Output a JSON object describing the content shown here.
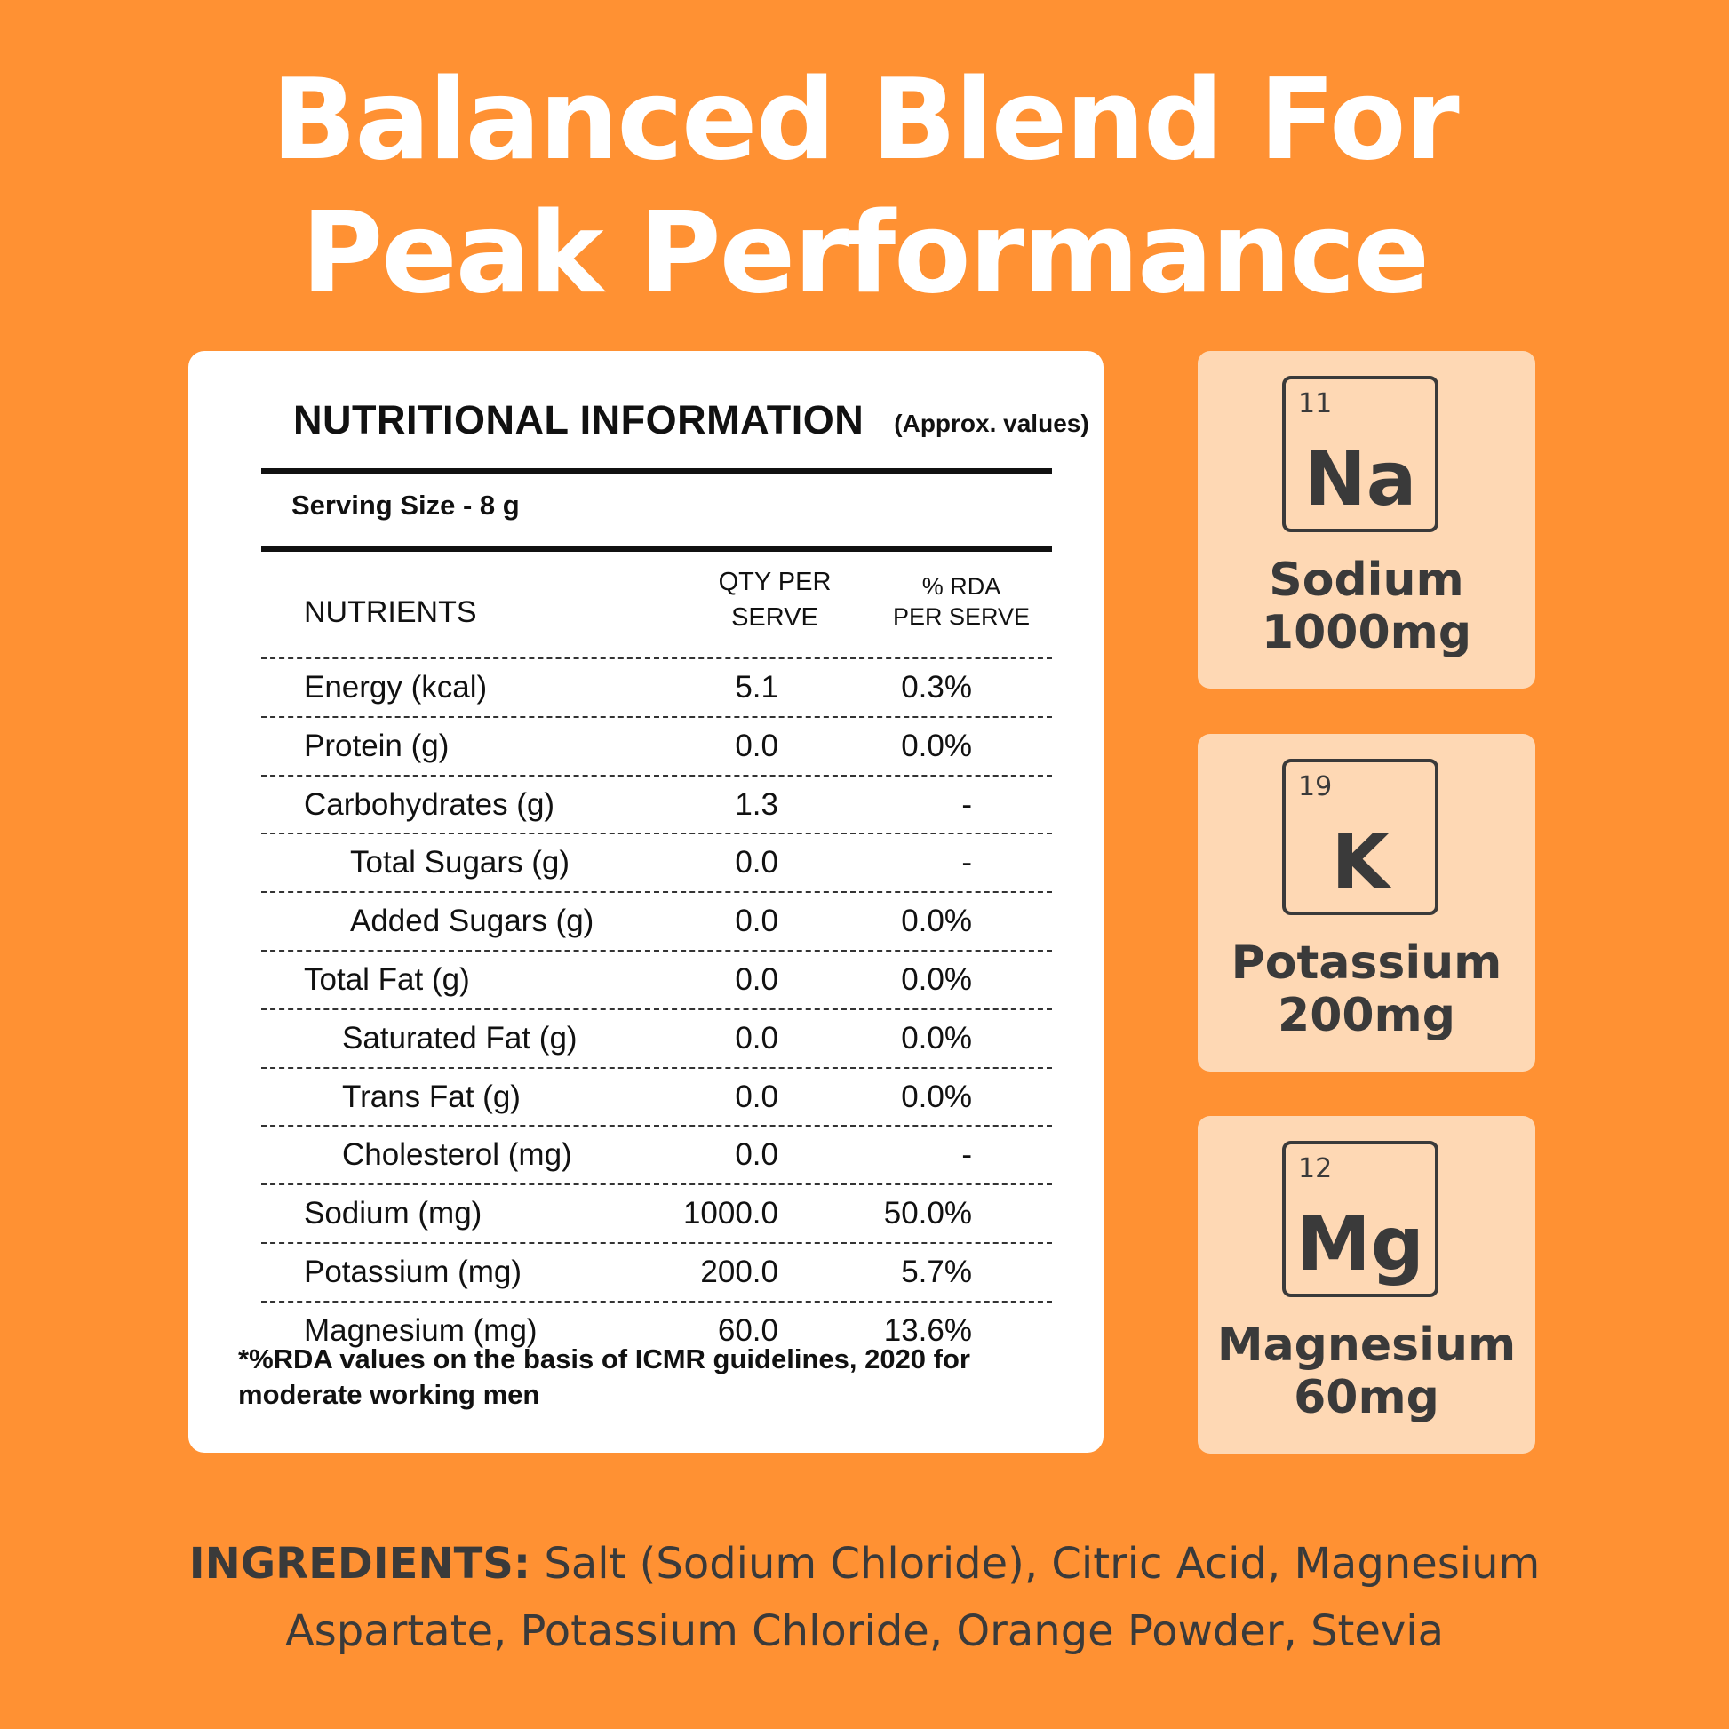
{
  "headline": {
    "line1": "Balanced Blend For",
    "line2": "Peak Performance"
  },
  "nutrition": {
    "title": "NUTRITIONAL INFORMATION",
    "subtitle": "(Approx. values)",
    "serving": "Serving Size - 8 g",
    "headers": {
      "nutrients": "NUTRIENTS",
      "qty_line1": "QTY PER",
      "qty_line2": "SERVE",
      "rda_line1": "% RDA",
      "rda_line2": "PER SERVE"
    },
    "rows": [
      {
        "name": "Energy (kcal)",
        "qty": "5.1",
        "rda": "0.3%"
      },
      {
        "name": "Protein (g)",
        "qty": "0.0",
        "rda": "0.0%"
      },
      {
        "name": "Carbohydrates (g)",
        "qty": "1.3",
        "rda": "-"
      },
      {
        "name": "Total Sugars (g)",
        "qty": "0.0",
        "rda": "-"
      },
      {
        "name": "Added Sugars (g)",
        "qty": "0.0",
        "rda": "0.0%"
      },
      {
        "name": "Total Fat (g)",
        "qty": "0.0",
        "rda": "0.0%"
      },
      {
        "name": "Saturated Fat (g)",
        "qty": "0.0",
        "rda": "0.0%"
      },
      {
        "name": "Trans Fat (g)",
        "qty": "0.0",
        "rda": "0.0%"
      },
      {
        "name": "Cholesterol (mg)",
        "qty": "0.0",
        "rda": "-"
      },
      {
        "name": "Sodium  (mg)",
        "qty": "1000.0",
        "rda": "50.0%"
      },
      {
        "name": "Potassium (mg)",
        "qty": "200.0",
        "rda": "5.7%"
      },
      {
        "name": "Magnesium (mg)",
        "qty": "60.0",
        "rda": "13.6%"
      }
    ],
    "footnote": "*%RDA values on the basis of ICMR guidelines, 2020 for moderate working men"
  },
  "elements": [
    {
      "number": "11",
      "symbol": "Na",
      "name": "Sodium",
      "amount": "1000mg"
    },
    {
      "number": "19",
      "symbol": "K",
      "name": "Potassium",
      "amount": "200mg"
    },
    {
      "number": "12",
      "symbol": "Mg",
      "name": "Magnesium",
      "amount": "60mg"
    }
  ],
  "ingredients": {
    "label": "INGREDIENTS:",
    "text": "Salt (Sodium Chloride), Citric Acid, Magnesium Aspartate, Potassium Chloride, Orange Powder, Stevia"
  },
  "colors": {
    "background": "#FF9133",
    "card": "#FED8B4",
    "text_dark": "#3a3a3a"
  }
}
